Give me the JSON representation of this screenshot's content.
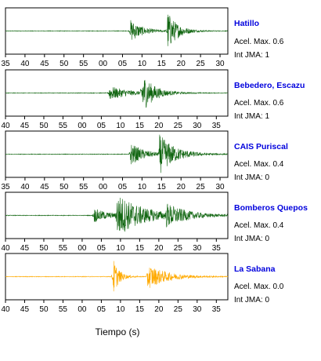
{
  "colors": {
    "trace_default": "#116611",
    "trace_last": "#ffaa00",
    "station_label": "#0000dd",
    "axes": "#000000"
  },
  "chart_data": {
    "type": "line",
    "xlabel": "Tiempo (s)",
    "ylim": [
      -1,
      1
    ],
    "panels": [
      {
        "station": "Hatillo",
        "acel_max": "Acel. Max. 0.6",
        "int_jma": "Int JMA: 1",
        "color": "#116611",
        "ticks": [
          "35",
          "40",
          "45",
          "50",
          "55",
          "00",
          "05",
          "10",
          "15",
          "20",
          "25",
          "30"
        ],
        "tick_values": [
          35,
          40,
          45,
          50,
          55,
          0,
          5,
          10,
          15,
          20,
          25,
          30
        ],
        "x_start_seconds": -25,
        "x_end_seconds": 32,
        "events": [
          {
            "t": 7,
            "amp": 0.55,
            "decay": 3
          },
          {
            "t": 16.5,
            "amp": 0.95,
            "decay": 2.5
          }
        ]
      },
      {
        "station": "Bebedero, Escazu",
        "acel_max": "Acel. Max. 0.6",
        "int_jma": "Int JMA: 1",
        "color": "#116611",
        "ticks": [
          "40",
          "45",
          "50",
          "55",
          "00",
          "05",
          "10",
          "15",
          "20",
          "25",
          "30",
          "35"
        ],
        "tick_values": [
          40,
          45,
          50,
          55,
          0,
          5,
          10,
          15,
          20,
          25,
          30,
          35
        ],
        "x_start_seconds": -20,
        "x_end_seconds": 38,
        "events": [
          {
            "t": 7,
            "amp": 0.35,
            "decay": 5
          },
          {
            "t": 15.5,
            "amp": 0.95,
            "decay": 3
          }
        ]
      },
      {
        "station": "CAIS Puriscal",
        "acel_max": "Acel. Max. 0.4",
        "int_jma": "Int JMA: 0",
        "color": "#116611",
        "ticks": [
          "35",
          "40",
          "45",
          "50",
          "55",
          "00",
          "05",
          "10",
          "15",
          "20",
          "25",
          "30"
        ],
        "tick_values": [
          35,
          40,
          45,
          50,
          55,
          0,
          5,
          10,
          15,
          20,
          25,
          30
        ],
        "x_start_seconds": -25,
        "x_end_seconds": 32,
        "events": [
          {
            "t": 7,
            "amp": 0.55,
            "decay": 3.5
          },
          {
            "t": 14.5,
            "amp": 0.9,
            "decay": 4
          }
        ]
      },
      {
        "station": "Bomberos Quepos",
        "acel_max": "Acel. Max. 0.4",
        "int_jma": "Int JMA: 0",
        "color": "#116611",
        "ticks": [
          "40",
          "45",
          "50",
          "55",
          "00",
          "05",
          "10",
          "15",
          "20",
          "25",
          "30",
          "35"
        ],
        "tick_values": [
          40,
          45,
          50,
          55,
          0,
          5,
          10,
          15,
          20,
          25,
          30,
          35
        ],
        "x_start_seconds": -20,
        "x_end_seconds": 38,
        "events": [
          {
            "t": 3,
            "amp": 0.35,
            "decay": 4
          },
          {
            "t": 9,
            "amp": 1.0,
            "decay": 7
          },
          {
            "t": 22,
            "amp": 0.45,
            "decay": 5
          }
        ]
      },
      {
        "station": "La Sabana",
        "acel_max": "Acel. Max. 0.0",
        "int_jma": "Int JMA: 0",
        "color": "#ffaa00",
        "ticks": [
          "40",
          "45",
          "50",
          "55",
          "00",
          "05",
          "10",
          "15",
          "20",
          "25",
          "30",
          "35"
        ],
        "tick_values": [
          40,
          45,
          50,
          55,
          0,
          5,
          10,
          15,
          20,
          25,
          30,
          35
        ],
        "x_start_seconds": -20,
        "x_end_seconds": 38,
        "events": [
          {
            "t": 8,
            "amp": 0.95,
            "decay": 1.5
          },
          {
            "t": 17,
            "amp": 0.6,
            "decay": 5
          }
        ]
      }
    ]
  }
}
